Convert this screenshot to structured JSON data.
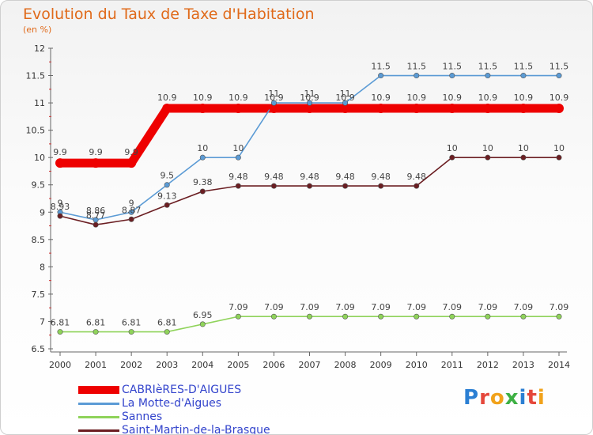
{
  "title": "Evolution du Taux de Taxe d'Habitation",
  "subtitle": "(en %)",
  "logo_text": "Proxiti",
  "chart_data": {
    "type": "line",
    "title": "Evolution du Taux de Taxe d'Habitation",
    "ylabel": "(en %)",
    "x": [
      "2000",
      "2001",
      "2002",
      "2003",
      "2004",
      "2005",
      "2006",
      "2007",
      "2008",
      "2009",
      "2010",
      "2011",
      "2012",
      "2013",
      "2014"
    ],
    "yticks": [
      "6.5",
      "7",
      "7.5",
      "8",
      "8.5",
      "9",
      "9.5",
      "10",
      "10.5",
      "11",
      "11.5",
      "12"
    ],
    "ylim": [
      6.5,
      12
    ],
    "grid": false,
    "legend_position": "bottom-left",
    "series": [
      {
        "name": "CABRIèRES-D'AIGUES",
        "color": "#ee0000",
        "values": [
          9.9,
          9.9,
          9.9,
          10.9,
          10.9,
          10.9,
          10.9,
          10.9,
          10.9,
          10.9,
          10.9,
          10.9,
          10.9,
          10.9,
          10.9
        ],
        "labels": [
          "9.9",
          "9.9",
          "9.9",
          "10.9",
          "10.9",
          "10.9",
          "10.9",
          "10.9",
          "10.9",
          "10.9",
          "10.9",
          "10.9",
          "10.9",
          "10.9",
          "10.9"
        ]
      },
      {
        "name": "La Motte-d'Aigues",
        "color": "#5b9bd5",
        "values": [
          9,
          8.86,
          9,
          9.5,
          10,
          10,
          11,
          11,
          11,
          11.5,
          11.5,
          11.5,
          11.5,
          11.5,
          11.5
        ],
        "labels": [
          "9",
          "8.86",
          "9",
          "9.5",
          "10",
          "10",
          "11",
          "11",
          "11",
          "11.5",
          "11.5",
          "11.5",
          "11.5",
          "11.5",
          "11.5"
        ]
      },
      {
        "name": "Sannes",
        "color": "#8fd35a",
        "values": [
          6.81,
          6.81,
          6.81,
          6.81,
          6.95,
          7.09,
          7.09,
          7.09,
          7.09,
          7.09,
          7.09,
          7.09,
          7.09,
          7.09,
          7.09
        ],
        "labels": [
          "6.81",
          "6.81",
          "6.81",
          "6.81",
          "6.95",
          "7.09",
          "7.09",
          "7.09",
          "7.09",
          "7.09",
          "7.09",
          "7.09",
          "7.09",
          "7.09",
          "7.09"
        ]
      },
      {
        "name": "Saint-Martin-de-la-Brasque",
        "color": "#6b1e22",
        "values": [
          8.93,
          8.77,
          8.87,
          9.13,
          9.38,
          9.48,
          9.48,
          9.48,
          9.48,
          9.48,
          9.48,
          10,
          10,
          10,
          10
        ],
        "labels": [
          "8.93",
          "8.77",
          "8.87",
          "9.13",
          "9.38",
          "9.48",
          "9.48",
          "9.48",
          "9.48",
          "9.48",
          "9.48",
          "10",
          "10",
          "10",
          "10"
        ]
      }
    ]
  }
}
